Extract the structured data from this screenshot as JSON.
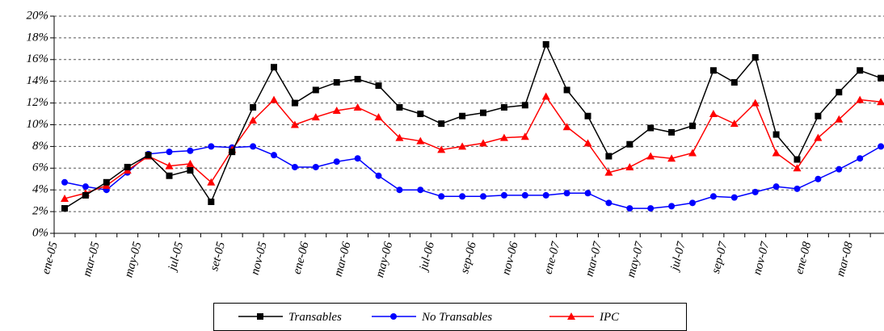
{
  "chart_data": {
    "type": "line",
    "categories": [
      "ene-05",
      null,
      "mar-05",
      null,
      "may-05",
      null,
      "jul-05",
      null,
      "set-05",
      null,
      "nov-05",
      null,
      "ene-06",
      null,
      "mar-06",
      null,
      "may-06",
      null,
      "jul-06",
      null,
      "sep-06",
      null,
      "nov-06",
      null,
      "ene-07",
      null,
      "mar-07",
      null,
      "may-07",
      null,
      "jul-07",
      null,
      "sep-07",
      null,
      "nov-07",
      null,
      "ene-08",
      null,
      "mar-08",
      null
    ],
    "series": [
      {
        "name": "Transables",
        "color": "#000000",
        "marker": "square",
        "values": [
          2.3,
          3.5,
          4.7,
          6.1,
          7.2,
          5.3,
          5.8,
          2.9,
          7.5,
          11.6,
          15.3,
          12.0,
          13.2,
          13.9,
          14.2,
          13.6,
          11.6,
          11.0,
          10.1,
          10.8,
          11.1,
          11.6,
          11.8,
          17.4,
          13.2,
          10.8,
          7.1,
          8.2,
          9.7,
          9.3,
          9.9,
          15.0,
          13.9,
          16.2,
          9.1,
          6.8,
          10.8,
          13.0,
          15.0,
          14.3
        ]
      },
      {
        "name": "No Transables",
        "color": "#0000ff",
        "marker": "circle",
        "values": [
          4.7,
          4.3,
          4.0,
          5.6,
          7.3,
          7.5,
          7.6,
          8.0,
          7.9,
          8.0,
          7.2,
          6.1,
          6.1,
          6.6,
          6.9,
          5.3,
          4.0,
          4.0,
          3.4,
          3.4,
          3.4,
          3.5,
          3.5,
          3.5,
          3.7,
          3.7,
          2.8,
          2.3,
          2.3,
          2.5,
          2.8,
          3.4,
          3.3,
          3.8,
          4.3,
          4.1,
          5.0,
          5.9,
          6.9,
          8.0
        ]
      },
      {
        "name": "IPC",
        "color": "#ff0000",
        "marker": "triangle",
        "values": [
          3.2,
          3.7,
          4.4,
          5.8,
          7.1,
          6.2,
          6.4,
          4.7,
          7.7,
          10.4,
          12.3,
          10.0,
          10.7,
          11.3,
          11.6,
          10.7,
          8.8,
          8.5,
          7.7,
          8.0,
          8.3,
          8.8,
          8.9,
          12.6,
          9.8,
          8.3,
          5.6,
          6.1,
          7.1,
          6.9,
          7.4,
          11.0,
          10.1,
          12.0,
          7.4,
          6.0,
          8.8,
          10.5,
          12.3,
          12.1
        ]
      }
    ],
    "ylim": [
      0,
      20
    ],
    "yticks": [
      {
        "value": 0,
        "label": "0%"
      },
      {
        "value": 2,
        "label": "2%"
      },
      {
        "value": 4,
        "label": "4%"
      },
      {
        "value": 6,
        "label": "6%"
      },
      {
        "value": 8,
        "label": "8%"
      },
      {
        "value": 10,
        "label": "10%"
      },
      {
        "value": 12,
        "label": "12%"
      },
      {
        "value": 14,
        "label": "14%"
      },
      {
        "value": 16,
        "label": "16%"
      },
      {
        "value": 18,
        "label": "18%"
      },
      {
        "value": 20,
        "label": "20%"
      }
    ],
    "grid": true,
    "legend": "bottom"
  }
}
